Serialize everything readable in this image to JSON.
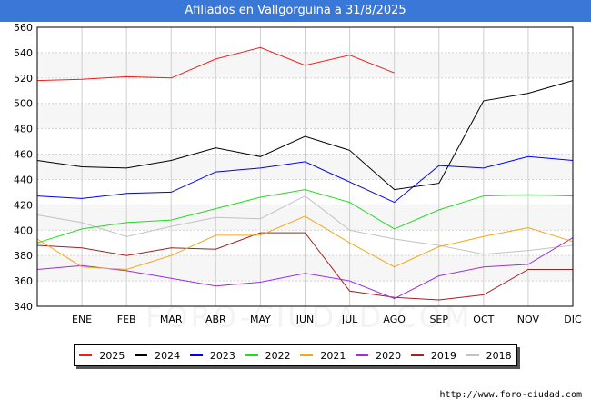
{
  "title": "Afiliados en Vallgorguina a 31/8/2025",
  "watermark": "FORO-CIUDAD.COM",
  "footer_url": "http://www.foro-ciudad.com",
  "chart_data": {
    "type": "line",
    "title": "Afiliados en Vallgorguina a 31/8/2025",
    "categories": [
      "",
      "ENE",
      "FEB",
      "MAR",
      "ABR",
      "MAY",
      "JUN",
      "JUL",
      "AGO",
      "SEP",
      "OCT",
      "NOV",
      "DIC"
    ],
    "ylim": [
      340,
      560
    ],
    "yticks": [
      340,
      360,
      380,
      400,
      420,
      440,
      460,
      480,
      500,
      520,
      540,
      560
    ],
    "grid": true,
    "legend_position": "bottom",
    "series": [
      {
        "name": "2025",
        "color": "#e8211e",
        "values": [
          518,
          519,
          521,
          520,
          535,
          544,
          530,
          538,
          524,
          null,
          null,
          null,
          null
        ]
      },
      {
        "name": "2024",
        "color": "#000000",
        "values": [
          455,
          450,
          449,
          455,
          465,
          458,
          474,
          463,
          432,
          437,
          502,
          508,
          518
        ]
      },
      {
        "name": "2023",
        "color": "#0000ee",
        "values": [
          427,
          425,
          429,
          430,
          446,
          449,
          454,
          438,
          422,
          451,
          449,
          458,
          455
        ]
      },
      {
        "name": "2022",
        "color": "#22dd22",
        "values": [
          390,
          401,
          406,
          408,
          417,
          426,
          432,
          422,
          401,
          416,
          427,
          428,
          427
        ]
      },
      {
        "name": "2021",
        "color": "#f0a81c",
        "values": [
          393,
          371,
          369,
          380,
          396,
          396,
          411,
          390,
          371,
          387,
          395,
          402,
          391
        ]
      },
      {
        "name": "2020",
        "color": "#9b30e0",
        "values": [
          369,
          372,
          368,
          362,
          356,
          359,
          366,
          360,
          346,
          364,
          371,
          373,
          394
        ]
      },
      {
        "name": "2019",
        "color": "#a52020",
        "values": [
          388,
          386,
          380,
          386,
          385,
          398,
          398,
          352,
          347,
          345,
          349,
          369,
          369
        ]
      },
      {
        "name": "2018",
        "color": "#c2c2c2",
        "values": [
          412,
          406,
          395,
          403,
          410,
          409,
          427,
          400,
          393,
          388,
          381,
          384,
          388
        ]
      }
    ]
  }
}
